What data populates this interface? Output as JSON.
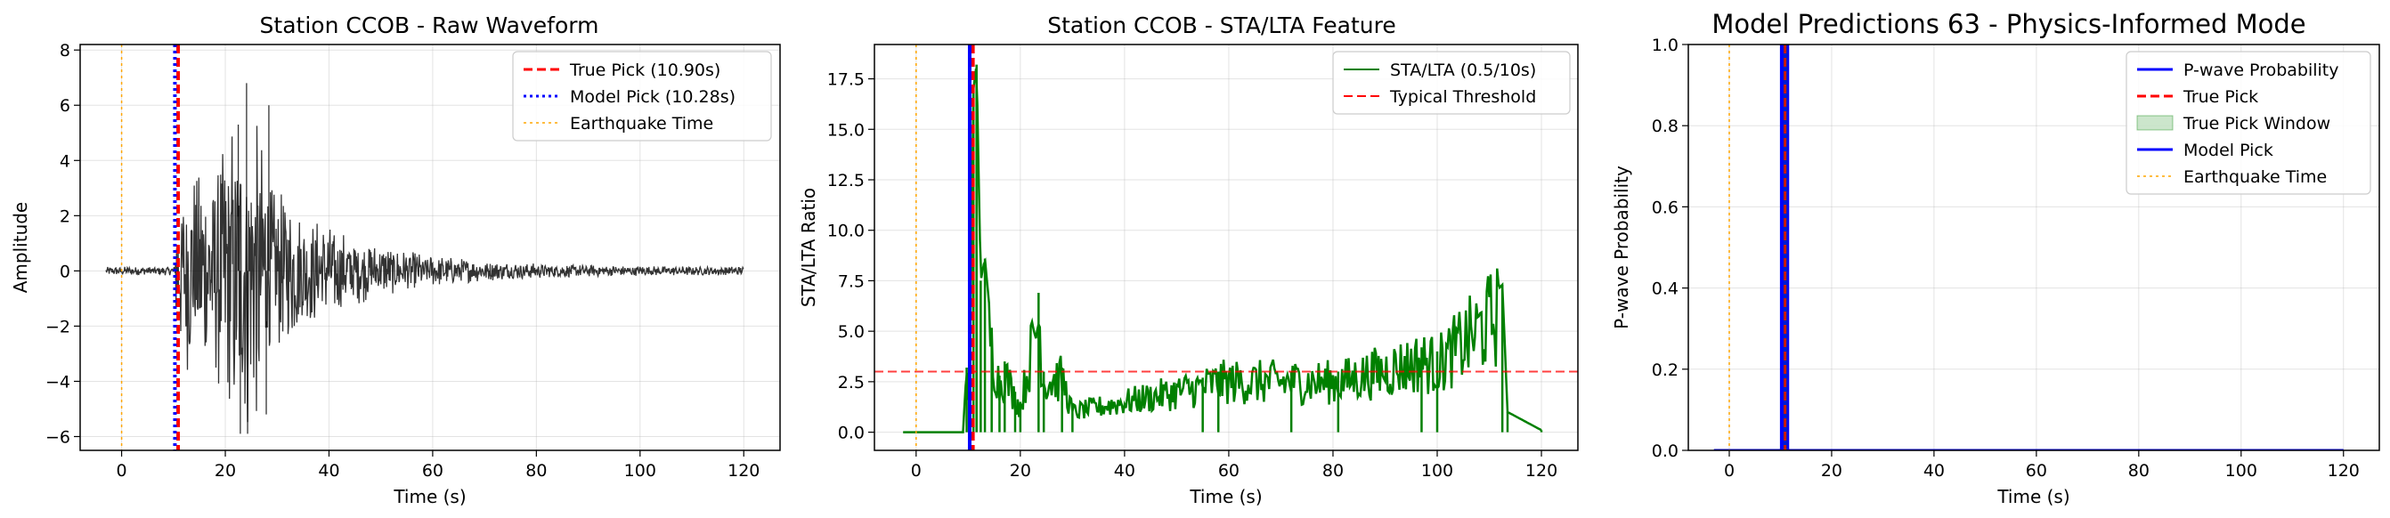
{
  "chart_data": [
    {
      "type": "line",
      "title": "Station CCOB - Raw Waveform",
      "xlabel": "Time (s)",
      "ylabel": "Amplitude",
      "xlim": [
        -8,
        127
      ],
      "ylim": [
        -6.5,
        8.2
      ],
      "xticks": [
        0,
        20,
        40,
        60,
        80,
        100,
        120
      ],
      "xtick_labels": [
        "0",
        "20",
        "40",
        "60",
        "80",
        "100",
        "120"
      ],
      "yticks": [
        -6,
        -4,
        -2,
        0,
        2,
        4,
        6,
        8
      ],
      "ytick_labels": [
        "−6",
        "−4",
        "−2",
        "0",
        "2",
        "4",
        "6",
        "8"
      ],
      "grid": true,
      "legend_position": "top-right",
      "series": [
        {
          "name": "",
          "kind": "waveform",
          "color": "#000000",
          "opacity": 0.8,
          "x_range": [
            -3,
            120
          ],
          "noise_amplitude": 0.1,
          "peak_amplitude": 6.8,
          "min_amplitude": -5.9
        }
      ],
      "vlines": [
        {
          "name": "True Pick (10.90s)",
          "x": 10.9,
          "color": "#ff0000",
          "style": "dashed"
        },
        {
          "name": "Model Pick (10.28s)",
          "x": 10.28,
          "color": "#0000ff",
          "style": "dotted"
        },
        {
          "name": "Earthquake Time",
          "x": 0,
          "color": "#ffa500",
          "style": "dotted"
        }
      ]
    },
    {
      "type": "line",
      "title": "Station CCOB - STA/LTA Feature",
      "xlabel": "Time (s)",
      "ylabel": "STA/LTA Ratio",
      "xlim": [
        -8,
        127
      ],
      "ylim": [
        -0.9,
        19.2
      ],
      "xticks": [
        0,
        20,
        40,
        60,
        80,
        100,
        120
      ],
      "xtick_labels": [
        "0",
        "20",
        "40",
        "60",
        "80",
        "100",
        "120"
      ],
      "yticks": [
        0,
        2.5,
        5,
        7.5,
        10,
        12.5,
        15,
        17.5
      ],
      "ytick_labels": [
        "0.0",
        "2.5",
        "5.0",
        "7.5",
        "10.0",
        "12.5",
        "15.0",
        "17.5"
      ],
      "grid": true,
      "legend_position": "top-right",
      "series": [
        {
          "name": "STA/LTA (0.5/10s)",
          "color": "#008000",
          "x_range": [
            -2.5,
            120
          ],
          "key_points": [
            [
              -2.5,
              0
            ],
            [
              9,
              0
            ],
            [
              9.7,
              3.2
            ],
            [
              10.2,
              0.6
            ],
            [
              11,
              17.0
            ],
            [
              11.6,
              18.2
            ],
            [
              12.4,
              7.5
            ],
            [
              13.2,
              8.6
            ],
            [
              14.5,
              5.0
            ],
            [
              16,
              2.8
            ],
            [
              17,
              3.5
            ],
            [
              19,
              2.0
            ],
            [
              20,
              1.5
            ],
            [
              23.5,
              6.9
            ],
            [
              24.5,
              3.0
            ],
            [
              28,
              3.2
            ],
            [
              30,
              1.2
            ],
            [
              55,
              2.7
            ],
            [
              58,
              3.0
            ],
            [
              72,
              3.0
            ],
            [
              81,
              3.0
            ],
            [
              97,
              4.2
            ],
            [
              100,
              4.0
            ],
            [
              112.5,
              7.3
            ],
            [
              113.5,
              1.0
            ],
            [
              120,
              0.1
            ]
          ]
        },
        {
          "name": "Typical Threshold",
          "kind": "hline",
          "y": 3.0,
          "color": "#ff0000",
          "style": "dashed",
          "opacity": 0.75
        }
      ],
      "vlines": [
        {
          "name": "True Pick",
          "x": 10.9,
          "color": "#ff0000",
          "style": "dashed"
        },
        {
          "name": "Model Pick",
          "x": 10.28,
          "color": "#0000ff",
          "style": "solid"
        },
        {
          "name": "Earthquake Time",
          "x": 0,
          "color": "#ffa500",
          "style": "dotted"
        }
      ]
    },
    {
      "type": "line",
      "title": "Model Predictions 63 - Physics-Informed Mode",
      "xlabel": "Time (s)",
      "ylabel": "P-wave Probability",
      "xlim": [
        -8,
        127
      ],
      "ylim": [
        0,
        1.0
      ],
      "xticks": [
        0,
        20,
        40,
        60,
        80,
        100,
        120
      ],
      "xtick_labels": [
        "0",
        "20",
        "40",
        "60",
        "80",
        "100",
        "120"
      ],
      "yticks": [
        0,
        0.2,
        0.4,
        0.6,
        0.8,
        1.0
      ],
      "ytick_labels": [
        "0.0",
        "0.2",
        "0.4",
        "0.6",
        "0.8",
        "1.0"
      ],
      "grid": true,
      "legend_position": "top-right",
      "series": [
        {
          "name": "P-wave Probability",
          "color": "#0000ff",
          "x": [
            -3,
            120
          ],
          "y": [
            0,
            0
          ]
        },
        {
          "name": "True Pick",
          "kind": "vline",
          "x": 10.9,
          "color": "#ff0000",
          "style": "dashed"
        },
        {
          "name": "True Pick Window",
          "kind": "span",
          "x": [
            10.4,
            11.4
          ],
          "color": "#008000",
          "opacity": 0.2
        },
        {
          "name": "Model Pick",
          "kind": "vline",
          "x": 10.28,
          "color": "#0000ff",
          "style": "solid"
        },
        {
          "name": "Earthquake Time",
          "kind": "vline",
          "x": 0,
          "color": "#ffa500",
          "style": "dotted"
        }
      ],
      "probability_band": {
        "x": [
          9.9,
          11.7
        ],
        "color": "#0000ff"
      }
    }
  ],
  "legends": [
    [
      {
        "label": "True Pick (10.90s)",
        "color": "#ff0000",
        "style": "dashed",
        "width": 3
      },
      {
        "label": "Model Pick (10.28s)",
        "color": "#0000ff",
        "style": "dotted",
        "width": 3
      },
      {
        "label": "Earthquake Time",
        "color": "#ffa500",
        "style": "dotted",
        "width": 1.5
      }
    ],
    [
      {
        "label": "STA/LTA (0.5/10s)",
        "color": "#008000",
        "style": "solid",
        "width": 2
      },
      {
        "label": "Typical Threshold",
        "color": "#ff0000",
        "style": "dashed",
        "width": 2
      }
    ],
    [
      {
        "label": "P-wave Probability",
        "color": "#0000ff",
        "style": "solid",
        "width": 3
      },
      {
        "label": "True Pick",
        "color": "#ff0000",
        "style": "dashed",
        "width": 3
      },
      {
        "label": "True Pick Window",
        "color": "#008000",
        "style": "patch",
        "width": 0
      },
      {
        "label": "Model Pick",
        "color": "#0000ff",
        "style": "solid",
        "width": 3
      },
      {
        "label": "Earthquake Time",
        "color": "#ffa500",
        "style": "dotted",
        "width": 1.5
      }
    ]
  ]
}
